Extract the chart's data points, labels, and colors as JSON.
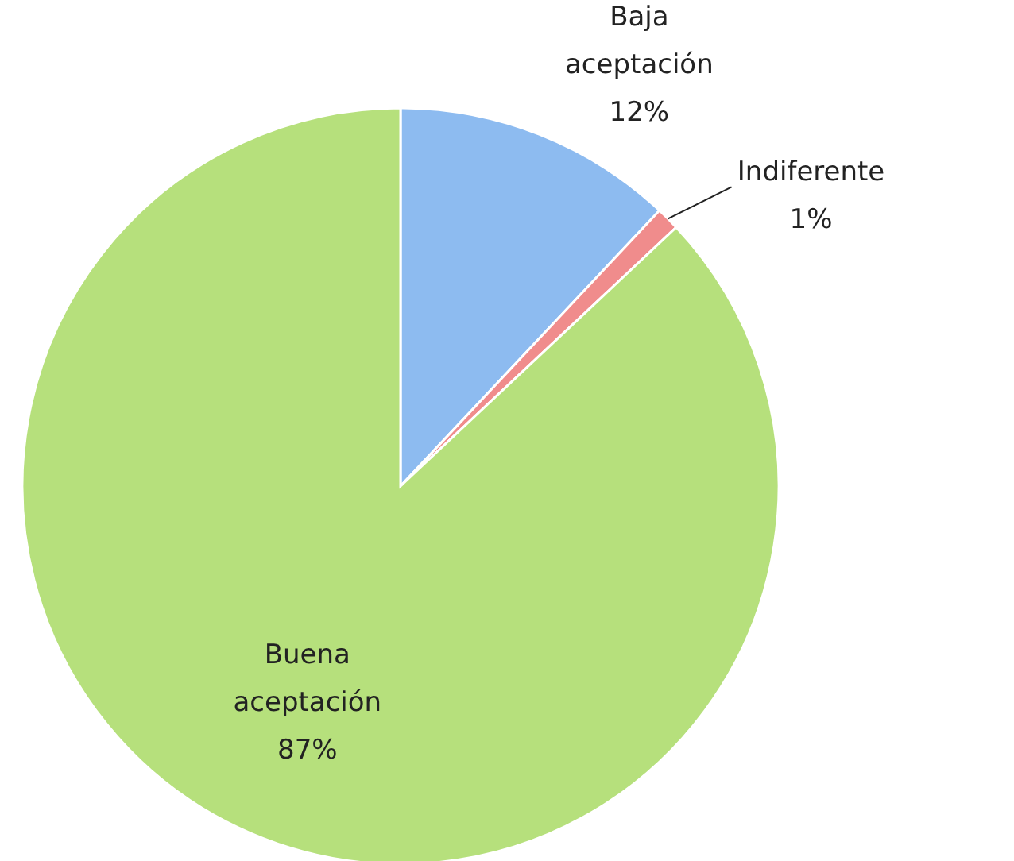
{
  "chart_data": {
    "type": "pie",
    "categories": [
      "Baja aceptación",
      "Indiferente",
      "Buena aceptación"
    ],
    "values": [
      12,
      1,
      87
    ],
    "colors": [
      "#8dbbf0",
      "#f08c8c",
      "#b6e07c"
    ],
    "value_labels": [
      "12%",
      "1%",
      "87%"
    ]
  }
}
